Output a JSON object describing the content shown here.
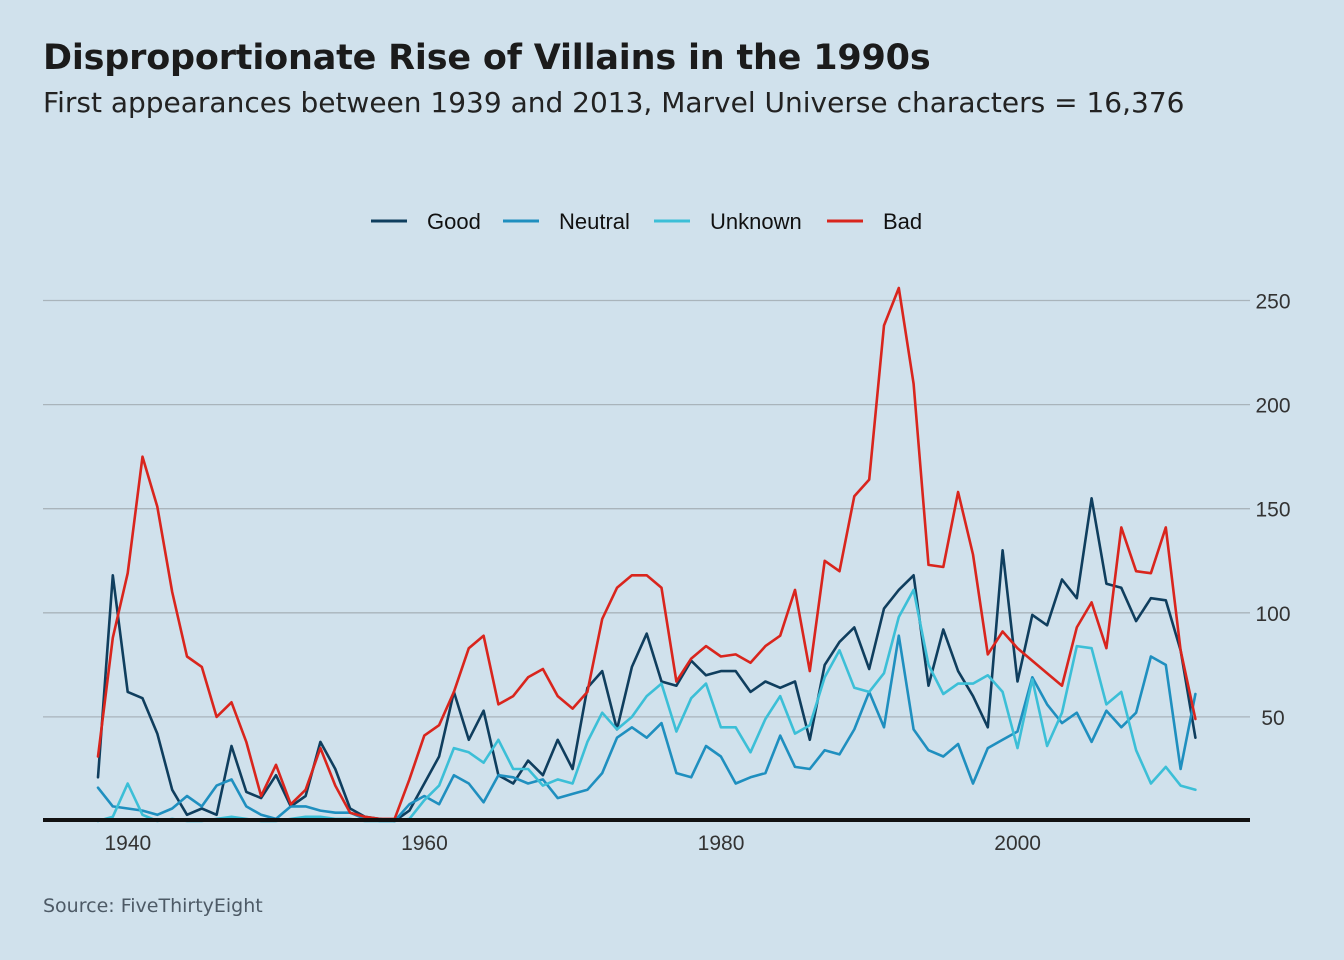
{
  "title": "Disproportionate Rise of Villains in the 1990s",
  "subtitle": "First appearances between 1939 and 2013, Marvel Universe characters = 16,376",
  "source": "Source: FiveThirtyEight",
  "chart_data": {
    "type": "line",
    "x_start": 1939,
    "x_end": 2013,
    "xlim": [
      1938,
      2014
    ],
    "ylim": [
      0,
      260
    ],
    "x_ticks": [
      1940,
      1960,
      1980,
      2000
    ],
    "x_tick_labels": [
      "1940",
      "1960",
      "1980",
      "2000"
    ],
    "y_ticks": [
      50,
      100,
      150,
      200,
      250
    ],
    "y_tick_labels": [
      "50",
      "100",
      "150",
      "200",
      "250"
    ],
    "grid": "horizontal",
    "y_axis_side": "right",
    "legend_position": "top-center",
    "series": [
      {
        "name": "Good",
        "color": "#0f3e5e",
        "x": [
          1939,
          1940,
          1941,
          1942,
          1943,
          1944,
          1945,
          1946,
          1947,
          1948,
          1949,
          1950,
          1951,
          1952,
          1953,
          1954,
          1955,
          1956,
          1957,
          1958,
          1959,
          1960,
          1961,
          1962,
          1963,
          1964,
          1965,
          1966,
          1967,
          1968,
          1969,
          1970,
          1971,
          1972,
          1973,
          1974,
          1975,
          1976,
          1977,
          1978,
          1979,
          1980,
          1981,
          1982,
          1983,
          1984,
          1985,
          1986,
          1987,
          1988,
          1989,
          1990,
          1991,
          1992,
          1993,
          1994,
          1995,
          1996,
          1997,
          1998,
          1999,
          2000,
          2001,
          2002,
          2003,
          2004,
          2005,
          2006,
          2007,
          2008,
          2009,
          2010,
          2011,
          2012,
          2013
        ],
        "values": [
          21,
          118,
          62,
          59,
          42,
          15,
          3,
          6,
          3,
          36,
          14,
          11,
          22,
          7,
          12,
          38,
          25,
          6,
          2,
          1,
          0,
          5,
          18,
          31,
          62,
          39,
          53,
          22,
          18,
          29,
          22,
          39,
          25,
          64,
          72,
          44,
          74,
          90,
          67,
          65,
          77,
          70,
          72,
          72,
          62,
          67,
          64,
          67,
          39,
          75,
          86,
          93,
          73,
          102,
          111,
          118,
          65,
          92,
          72,
          60,
          45,
          130,
          67,
          99,
          94,
          116,
          107,
          155,
          114,
          112,
          96,
          107,
          106,
          82,
          40
        ]
      },
      {
        "name": "Neutral",
        "color": "#1f8fbf",
        "x": [
          1939,
          1940,
          1941,
          1942,
          1943,
          1944,
          1945,
          1946,
          1947,
          1948,
          1949,
          1950,
          1951,
          1952,
          1953,
          1954,
          1955,
          1956,
          1957,
          1958,
          1959,
          1960,
          1961,
          1962,
          1963,
          1964,
          1965,
          1966,
          1967,
          1968,
          1969,
          1970,
          1971,
          1972,
          1973,
          1974,
          1975,
          1976,
          1977,
          1978,
          1979,
          1980,
          1981,
          1982,
          1983,
          1984,
          1985,
          1986,
          1987,
          1988,
          1989,
          1990,
          1991,
          1992,
          1993,
          1994,
          1995,
          1996,
          1997,
          1998,
          1999,
          2000,
          2001,
          2002,
          2003,
          2004,
          2005,
          2006,
          2007,
          2008,
          2009,
          2010,
          2011,
          2012,
          2013
        ],
        "values": [
          16,
          7,
          6,
          5,
          3,
          6,
          12,
          7,
          17,
          20,
          7,
          3,
          1,
          7,
          7,
          5,
          4,
          4,
          1,
          0,
          0,
          8,
          12,
          8,
          22,
          18,
          9,
          22,
          21,
          18,
          20,
          11,
          13,
          15,
          23,
          40,
          45,
          40,
          47,
          23,
          21,
          36,
          31,
          18,
          21,
          23,
          41,
          26,
          25,
          34,
          32,
          44,
          62,
          45,
          89,
          44,
          34,
          31,
          37,
          18,
          35,
          39,
          43,
          69,
          56,
          47,
          52,
          38,
          53,
          45,
          52,
          79,
          75,
          25,
          61
        ]
      },
      {
        "name": "Unknown",
        "color": "#3cbfd7",
        "x": [
          1939,
          1940,
          1941,
          1942,
          1943,
          1944,
          1945,
          1946,
          1947,
          1948,
          1949,
          1950,
          1951,
          1952,
          1953,
          1954,
          1955,
          1956,
          1957,
          1958,
          1959,
          1960,
          1961,
          1962,
          1963,
          1964,
          1965,
          1966,
          1967,
          1968,
          1969,
          1970,
          1971,
          1972,
          1973,
          1974,
          1975,
          1976,
          1977,
          1978,
          1979,
          1980,
          1981,
          1982,
          1983,
          1984,
          1985,
          1986,
          1987,
          1988,
          1989,
          1990,
          1991,
          1992,
          1993,
          1994,
          1995,
          1996,
          1997,
          1998,
          1999,
          2000,
          2001,
          2002,
          2003,
          2004,
          2005,
          2006,
          2007,
          2008,
          2009,
          2010,
          2011,
          2012,
          2013
        ],
        "values": [
          0,
          2,
          18,
          3,
          0,
          1,
          0,
          0,
          1,
          2,
          1,
          0,
          0,
          1,
          2,
          2,
          1,
          1,
          0,
          0,
          0,
          1,
          10,
          17,
          35,
          33,
          28,
          39,
          25,
          25,
          17,
          20,
          18,
          38,
          52,
          44,
          50,
          60,
          66,
          43,
          59,
          66,
          45,
          45,
          33,
          49,
          60,
          42,
          46,
          69,
          82,
          64,
          62,
          71,
          98,
          111,
          75,
          61,
          66,
          66,
          70,
          62,
          35,
          68,
          36,
          52,
          84,
          83,
          56,
          62,
          34,
          18,
          26,
          17,
          15
        ]
      },
      {
        "name": "Bad",
        "color": "#d9251d",
        "x": [
          1939,
          1940,
          1941,
          1942,
          1943,
          1944,
          1945,
          1946,
          1947,
          1948,
          1949,
          1950,
          1951,
          1952,
          1953,
          1954,
          1955,
          1956,
          1957,
          1958,
          1959,
          1960,
          1961,
          1962,
          1963,
          1964,
          1965,
          1966,
          1967,
          1968,
          1969,
          1970,
          1971,
          1972,
          1973,
          1974,
          1975,
          1976,
          1977,
          1978,
          1979,
          1980,
          1981,
          1982,
          1983,
          1984,
          1985,
          1986,
          1987,
          1988,
          1989,
          1990,
          1991,
          1992,
          1993,
          1994,
          1995,
          1996,
          1997,
          1998,
          1999,
          2000,
          2001,
          2002,
          2003,
          2004,
          2005,
          2006,
          2007,
          2008,
          2009,
          2010,
          2011,
          2012,
          2013
        ],
        "values": [
          31,
          88,
          119,
          175,
          151,
          110,
          79,
          74,
          50,
          57,
          38,
          12,
          27,
          8,
          15,
          35,
          17,
          4,
          2,
          1,
          1,
          20,
          41,
          46,
          62,
          83,
          89,
          56,
          60,
          69,
          73,
          60,
          54,
          62,
          97,
          112,
          118,
          118,
          112,
          67,
          78,
          84,
          79,
          80,
          76,
          84,
          89,
          111,
          72,
          125,
          120,
          156,
          164,
          238,
          256,
          210,
          123,
          122,
          158,
          128,
          80,
          91,
          83,
          77,
          71,
          65,
          93,
          105,
          83,
          141,
          120,
          119,
          141,
          82,
          49
        ]
      }
    ]
  }
}
